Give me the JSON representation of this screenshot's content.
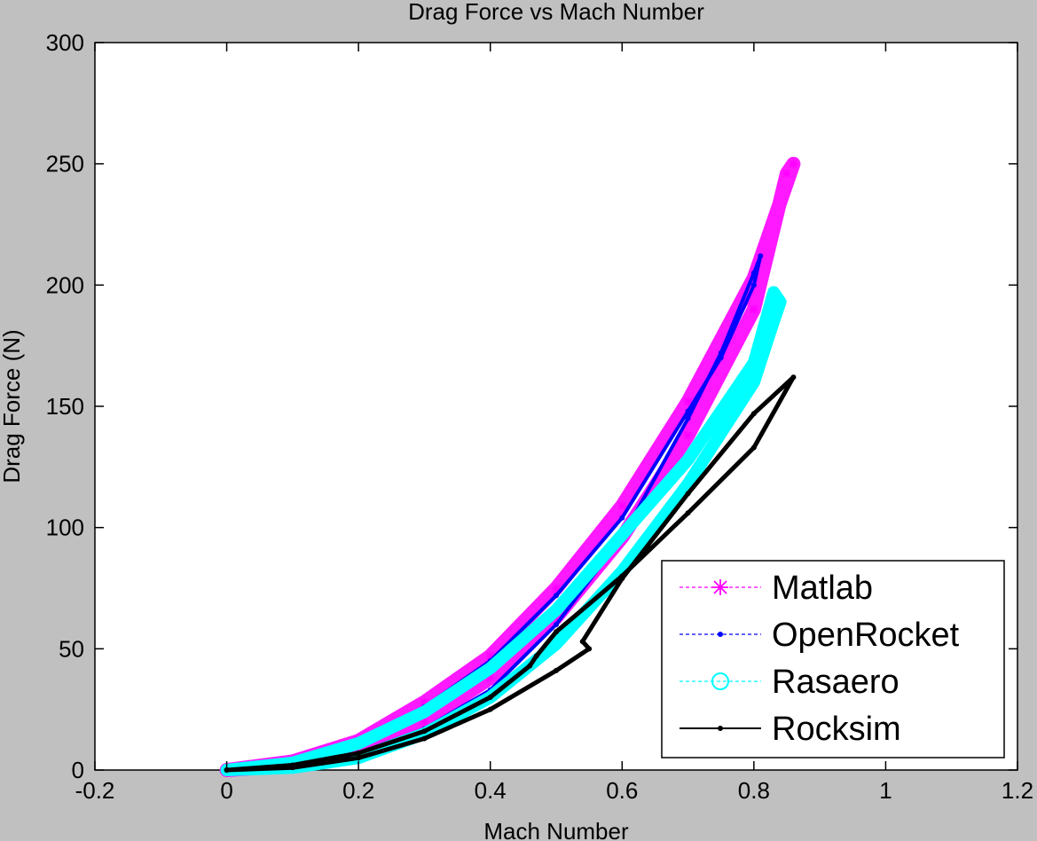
{
  "chart_data": {
    "type": "line",
    "title": "Drag Force vs Mach Number",
    "xlabel": "Mach Number",
    "ylabel": "Drag Force (N)",
    "xlim": [
      -0.2,
      1.2
    ],
    "ylim": [
      0,
      300
    ],
    "xticks": [
      -0.2,
      0,
      0.2,
      0.4,
      0.6,
      0.8,
      1,
      1.2
    ],
    "xtick_labels": [
      "-0.2",
      "0",
      "0.2",
      "0.4",
      "0.6",
      "0.8",
      "1",
      "1.2"
    ],
    "yticks": [
      0,
      50,
      100,
      150,
      200,
      250,
      300
    ],
    "ytick_labels": [
      "0",
      "50",
      "100",
      "150",
      "200",
      "250",
      "300"
    ],
    "grid": false,
    "legend_position": "bottom-right",
    "series": [
      {
        "name": "Matlab",
        "color": "#ff00ff",
        "marker": "asterisk",
        "x": [
          0,
          0.1,
          0.2,
          0.3,
          0.4,
          0.5,
          0.6,
          0.7,
          0.8,
          0.86,
          0.85,
          0.8,
          0.7,
          0.6,
          0.5,
          0.4,
          0.3,
          0.2,
          0.1,
          0
        ],
        "y": [
          0,
          3.5,
          12,
          28,
          47,
          75,
          109,
          152,
          203,
          250,
          246,
          190,
          138,
          96,
          63,
          38,
          20,
          9,
          2,
          0
        ]
      },
      {
        "name": "OpenRocket",
        "color": "#0000ff",
        "marker": "dot",
        "x": [
          0,
          0.1,
          0.2,
          0.3,
          0.4,
          0.5,
          0.6,
          0.7,
          0.75,
          0.8,
          0.81,
          0.8,
          0.75,
          0.7,
          0.6,
          0.5,
          0.4,
          0.3,
          0.2,
          0.1,
          0
        ],
        "y": [
          0,
          3,
          11,
          26,
          45,
          72,
          104,
          148,
          170,
          200,
          212,
          205,
          172,
          145,
          96,
          60,
          33,
          17,
          7,
          1.5,
          0
        ]
      },
      {
        "name": "Rasaero",
        "color": "#00ffff",
        "marker": "circle",
        "x": [
          0,
          0.1,
          0.2,
          0.3,
          0.4,
          0.5,
          0.6,
          0.7,
          0.8,
          0.83,
          0.84,
          0.83,
          0.8,
          0.7,
          0.6,
          0.5,
          0.4,
          0.3,
          0.2,
          0.1,
          0
        ],
        "y": [
          0,
          3,
          11,
          24,
          42,
          66,
          97,
          128,
          168,
          197,
          193,
          185,
          160,
          118,
          82,
          52,
          30,
          15,
          5,
          1,
          0
        ]
      },
      {
        "name": "Rocksim",
        "color": "#000000",
        "marker": "dot",
        "x": [
          0,
          0.1,
          0.2,
          0.3,
          0.4,
          0.46,
          0.47,
          0.5,
          0.6,
          0.7,
          0.8,
          0.86,
          0.8,
          0.7,
          0.6,
          0.54,
          0.55,
          0.5,
          0.4,
          0.3,
          0.2,
          0.1,
          0
        ],
        "y": [
          0,
          2,
          7,
          16,
          30,
          43,
          47,
          57,
          80,
          106,
          133,
          162,
          147,
          114,
          79,
          53,
          50,
          41,
          25,
          13,
          5,
          1,
          0
        ]
      }
    ]
  }
}
